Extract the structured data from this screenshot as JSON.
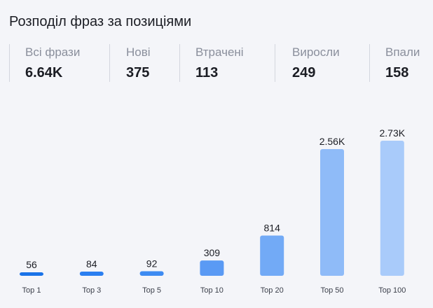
{
  "title": "Розподіл фраз за позиціями",
  "stats": [
    {
      "label": "Всі фрази",
      "value": "6.64K"
    },
    {
      "label": "Нові",
      "value": "375"
    },
    {
      "label": "Втрачені",
      "value": "113"
    },
    {
      "label": "Виросли",
      "value": "249"
    },
    {
      "label": "Впали",
      "value": "158"
    }
  ],
  "chart_data": {
    "type": "bar",
    "categories": [
      "Top 1",
      "Top 3",
      "Top 5",
      "Top 10",
      "Top 20",
      "Top 50",
      "Top 100"
    ],
    "values": [
      56,
      84,
      92,
      309,
      814,
      2560,
      2730
    ],
    "value_labels": [
      "56",
      "84",
      "92",
      "309",
      "814",
      "2.56K",
      "2.73K"
    ],
    "bar_colors": [
      "#1a73e8",
      "#2b7ff0",
      "#3d8bf2",
      "#5a9af4",
      "#72aaf6",
      "#8fbbf8",
      "#a9cbfa"
    ],
    "grid": false
  }
}
